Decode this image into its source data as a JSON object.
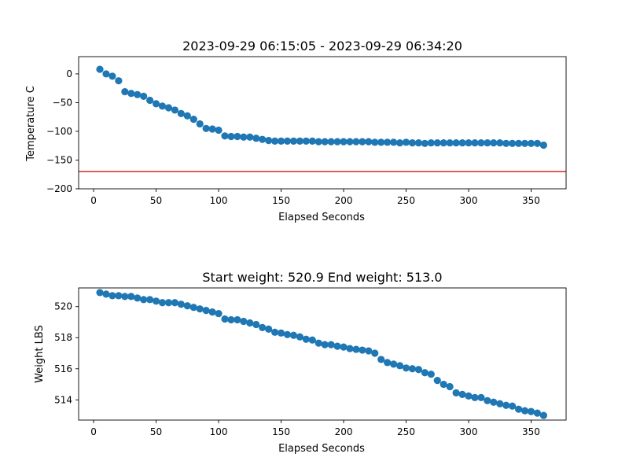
{
  "chart_data": [
    {
      "type": "scatter",
      "title": "2023-09-29 06:15:05 - 2023-09-29 06:34:20",
      "xlabel": "Elapsed Seconds",
      "ylabel": "Temperature C",
      "xlim": [
        -12,
        378
      ],
      "ylim": [
        -200,
        30
      ],
      "xticks": [
        0,
        50,
        100,
        150,
        200,
        250,
        300,
        350
      ],
      "yticks": [
        -200,
        -150,
        -100,
        -50,
        0
      ],
      "grid": false,
      "marker_color": "#1f77b4",
      "reference_line": {
        "y": -170,
        "color": "#d62728"
      },
      "series": [
        {
          "x": [
            5,
            10,
            15,
            20,
            25,
            30,
            35,
            40,
            45,
            50,
            55,
            60,
            65,
            70,
            75,
            80,
            85,
            90,
            95,
            100,
            105,
            110,
            115,
            120,
            125,
            130,
            135,
            140,
            145,
            150,
            155,
            160,
            165,
            170,
            175,
            180,
            185,
            190,
            195,
            200,
            205,
            210,
            215,
            220,
            225,
            230,
            235,
            240,
            245,
            250,
            255,
            260,
            265,
            270,
            275,
            280,
            285,
            290,
            295,
            300,
            305,
            310,
            315,
            320,
            325,
            330,
            335,
            340,
            345,
            350,
            355,
            360
          ],
          "y": [
            8,
            0,
            -4,
            -12,
            -31,
            -34,
            -36,
            -39,
            -46,
            -52,
            -56,
            -59,
            -63,
            -69,
            -73,
            -79,
            -87,
            -95,
            -96,
            -98,
            -108,
            -109,
            -109,
            -110,
            -110,
            -112,
            -114,
            -116,
            -117,
            -117,
            -117,
            -117,
            -117,
            -117,
            -117,
            -118,
            -118,
            -118,
            -118,
            -118,
            -118,
            -118,
            -118,
            -118,
            -119,
            -119,
            -119,
            -119,
            -120,
            -119,
            -120,
            -120,
            -121,
            -120,
            -120,
            -120,
            -120,
            -120,
            -120,
            -120,
            -120,
            -120,
            -120,
            -120,
            -120,
            -121,
            -121,
            -121,
            -121,
            -121,
            -121,
            -124
          ]
        }
      ]
    },
    {
      "type": "scatter",
      "title": "Start weight: 520.9 End weight: 513.0",
      "xlabel": "Elapsed Seconds",
      "ylabel": "Weight LBS",
      "xlim": [
        -12,
        378
      ],
      "ylim": [
        512.7,
        521.2
      ],
      "xticks": [
        0,
        50,
        100,
        150,
        200,
        250,
        300,
        350
      ],
      "yticks": [
        514,
        516,
        518,
        520
      ],
      "grid": false,
      "marker_color": "#1f77b4",
      "series": [
        {
          "x": [
            5,
            10,
            15,
            20,
            25,
            30,
            35,
            40,
            45,
            50,
            55,
            60,
            65,
            70,
            75,
            80,
            85,
            90,
            95,
            100,
            105,
            110,
            115,
            120,
            125,
            130,
            135,
            140,
            145,
            150,
            155,
            160,
            165,
            170,
            175,
            180,
            185,
            190,
            195,
            200,
            205,
            210,
            215,
            220,
            225,
            230,
            235,
            240,
            245,
            250,
            255,
            260,
            265,
            270,
            275,
            280,
            285,
            290,
            295,
            300,
            305,
            310,
            315,
            320,
            325,
            330,
            335,
            340,
            345,
            350,
            355,
            360
          ],
          "y": [
            520.9,
            520.8,
            520.7,
            520.7,
            520.65,
            520.65,
            520.55,
            520.45,
            520.45,
            520.35,
            520.25,
            520.25,
            520.25,
            520.15,
            520.05,
            519.95,
            519.85,
            519.75,
            519.65,
            519.55,
            519.2,
            519.15,
            519.15,
            519.05,
            518.95,
            518.85,
            518.65,
            518.55,
            518.35,
            518.3,
            518.2,
            518.15,
            518.05,
            517.9,
            517.85,
            517.65,
            517.55,
            517.55,
            517.45,
            517.4,
            517.3,
            517.25,
            517.2,
            517.15,
            517.0,
            516.6,
            516.4,
            516.3,
            516.2,
            516.05,
            516.0,
            515.95,
            515.75,
            515.65,
            515.25,
            515.0,
            514.85,
            514.45,
            514.35,
            514.25,
            514.15,
            514.15,
            513.95,
            513.85,
            513.75,
            513.65,
            513.6,
            513.4,
            513.3,
            513.25,
            513.15,
            513.0
          ]
        }
      ]
    }
  ]
}
